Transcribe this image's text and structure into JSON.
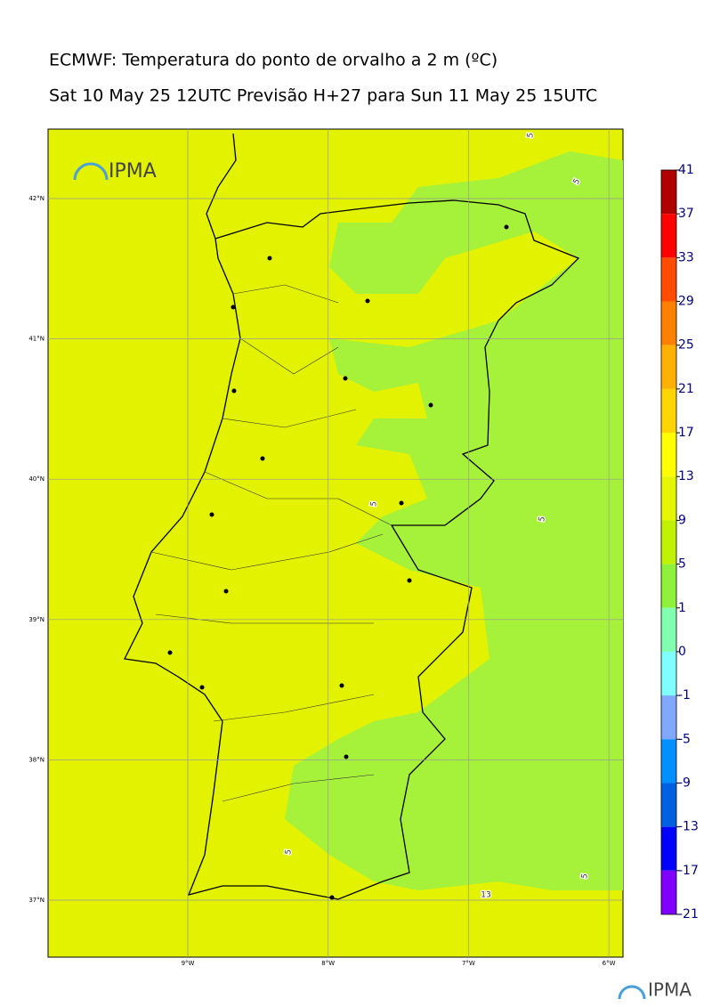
{
  "header": {
    "title": "ECMWF: Temperatura do ponto de orvalho a 2 m (ºC)",
    "subtitle": "Sat 10 May 25 12UTC Previsão H+27 para Sun 11 May 25 15UTC"
  },
  "logo": {
    "text": "IPMA"
  },
  "footer_logo": {
    "text": "IPMA"
  },
  "map": {
    "lat_labels": [
      "42°N",
      "41°N",
      "40°N",
      "39°N",
      "38°N",
      "37°N"
    ],
    "lon_labels": [
      "9°W",
      "8°W",
      "7°W",
      "6°W"
    ],
    "contour_labels": [
      "5",
      "5",
      "5",
      "5",
      "5",
      "5",
      "13"
    ]
  },
  "colorbar": {
    "ticks": [
      41,
      37,
      33,
      29,
      25,
      21,
      17,
      13,
      9,
      5,
      1,
      0,
      -1,
      -5,
      -9,
      -13,
      -17,
      -21
    ],
    "colors": [
      "#b00000",
      "#ff0000",
      "#ff4c00",
      "#ff8000",
      "#ffb000",
      "#ffd400",
      "#ffff00",
      "#e4f700",
      "#c0f200",
      "#8ef23c",
      "#80ffb0",
      "#80ffff",
      "#80a8ff",
      "#0090ff",
      "#0060e0",
      "#0000ff",
      "#8000ff"
    ]
  }
}
